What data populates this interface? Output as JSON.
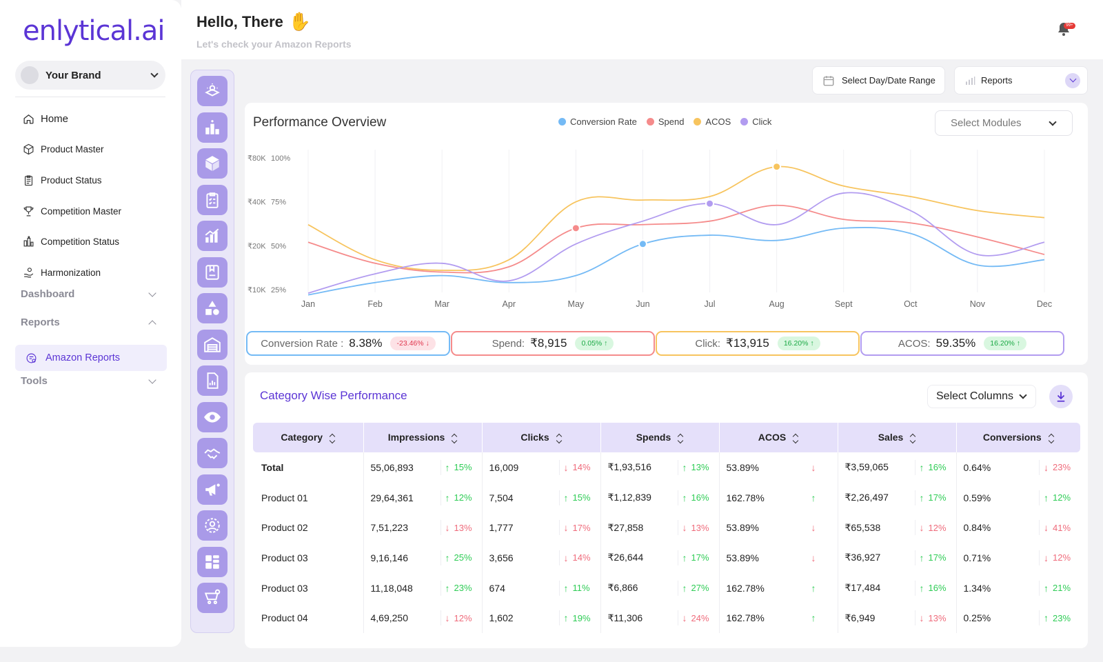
{
  "brand": {
    "logo_main": "enlytical",
    "logo_suffix": ".ai",
    "selector": "Your Brand"
  },
  "nav": {
    "items": [
      {
        "label": "Home",
        "icon": "home-icon"
      },
      {
        "label": "Product Master",
        "icon": "box-icon"
      },
      {
        "label": "Product Status",
        "icon": "clipboard-icon"
      },
      {
        "label": "Competition Master",
        "icon": "trophy-icon"
      },
      {
        "label": "Competition Status",
        "icon": "buildings-icon"
      },
      {
        "label": "Harmonization",
        "icon": "hand-coin-icon"
      }
    ],
    "sections": {
      "dashboard": "Dashboard",
      "reports": "Reports",
      "tools": "Tools"
    },
    "active_item": "Amazon Reports"
  },
  "header": {
    "greeting": "Hello, There",
    "subtitle": "Let's check your Amazon Reports",
    "notification_badge": "99+"
  },
  "controls": {
    "date_range": "Select Day/Date Range",
    "reports": "Reports"
  },
  "performance": {
    "title": "Performance Overview",
    "modules_placeholder": "Select Modules",
    "legend": [
      {
        "name": "Conversion Rate",
        "color": "#74baf5"
      },
      {
        "name": "Spend",
        "color": "#f58b8b"
      },
      {
        "name": "ACOS",
        "color": "#f7c45e"
      },
      {
        "name": "Click",
        "color": "#b29cf0"
      }
    ],
    "kpis": [
      {
        "label": "Conversion Rate :",
        "value": "8.38%",
        "change": "-23.46% ↓",
        "dir": "down",
        "color": "#74baf5"
      },
      {
        "label": "Spend:",
        "value": "₹8,915",
        "change": "0.05% ↑",
        "dir": "up",
        "color": "#f58b8b"
      },
      {
        "label": "Click:",
        "value": "₹13,915",
        "change": "16.20% ↑",
        "dir": "up",
        "color": "#f7c45e"
      },
      {
        "label": "ACOS:",
        "value": "59.35%",
        "change": "16.20% ↑",
        "dir": "up",
        "color": "#b29cf0"
      }
    ]
  },
  "chart_data": {
    "type": "line",
    "categories": [
      "Jan",
      "Feb",
      "Mar",
      "Apr",
      "May",
      "Jun",
      "Jul",
      "Aug",
      "Sept",
      "Oct",
      "Nov",
      "Dec"
    ],
    "y_left_ticks": [
      "₹80K",
      "₹40K",
      "₹20K",
      "₹10K"
    ],
    "y_right_ticks": [
      "100%",
      "75%",
      "50%",
      "25%"
    ],
    "ylim": [
      25,
      100
    ],
    "series": [
      {
        "name": "Conversion Rate",
        "color": "#74baf5",
        "values": [
          22,
          29,
          33,
          29,
          33,
          51,
          56,
          53,
          60,
          57,
          39,
          42
        ],
        "marker_index": 5
      },
      {
        "name": "Spend",
        "color": "#f58b8b",
        "values": [
          52,
          40,
          35,
          38,
          60,
          62,
          64,
          73,
          65,
          63,
          55,
          45
        ],
        "marker_index": 4
      },
      {
        "name": "ACOS",
        "color": "#f7c45e",
        "values": [
          62,
          42,
          36,
          42,
          75,
          76,
          78,
          95,
          84,
          78,
          70,
          66
        ],
        "marker_index": 7
      },
      {
        "name": "Click",
        "color": "#b29cf0",
        "values": [
          23,
          34,
          40,
          30,
          51,
          64,
          74,
          62,
          80,
          70,
          45,
          52
        ],
        "marker_index": 6
      }
    ]
  },
  "category": {
    "title": "Category Wise Performance",
    "select_columns": "Select Columns",
    "headers": [
      "Category",
      "Impressions",
      "Clicks",
      "Spends",
      "ACOS",
      "Sales",
      "Conversions"
    ],
    "rows": [
      {
        "name": "Total",
        "impressions": "55,06,893",
        "imp_chg": "15%",
        "imp_dir": "up",
        "clicks": "16,009",
        "clk_chg": "14%",
        "clk_dir": "down",
        "spends": "₹1,93,516",
        "spd_chg": "13%",
        "spd_dir": "up",
        "acos": "53.89%",
        "acos_dir": "down",
        "sales": "₹3,59,065",
        "sal_chg": "16%",
        "sal_dir": "up",
        "conv": "0.64%",
        "conv_chg": "23%",
        "conv_dir": "down"
      },
      {
        "name": "Product 01",
        "impressions": "29,64,361",
        "imp_chg": "12%",
        "imp_dir": "up",
        "clicks": "7,504",
        "clk_chg": "15%",
        "clk_dir": "up",
        "spends": "₹1,12,839",
        "spd_chg": "16%",
        "spd_dir": "up",
        "acos": "162.78%",
        "acos_dir": "up",
        "sales": "₹2,26,497",
        "sal_chg": "17%",
        "sal_dir": "up",
        "conv": "0.59%",
        "conv_chg": "12%",
        "conv_dir": "up"
      },
      {
        "name": "Product 02",
        "impressions": "7,51,223",
        "imp_chg": "13%",
        "imp_dir": "down",
        "clicks": "1,777",
        "clk_chg": "17%",
        "clk_dir": "down",
        "spends": "₹27,858",
        "spd_chg": "13%",
        "spd_dir": "down",
        "acos": "53.89%",
        "acos_dir": "down",
        "sales": "₹65,538",
        "sal_chg": "12%",
        "sal_dir": "down",
        "conv": "0.84%",
        "conv_chg": "41%",
        "conv_dir": "down"
      },
      {
        "name": "Product 03",
        "impressions": "9,16,146",
        "imp_chg": "25%",
        "imp_dir": "up",
        "clicks": "3,656",
        "clk_chg": "14%",
        "clk_dir": "down",
        "spends": "₹26,644",
        "spd_chg": "17%",
        "spd_dir": "up",
        "acos": "53.89%",
        "acos_dir": "down",
        "sales": "₹36,927",
        "sal_chg": "17%",
        "sal_dir": "up",
        "conv": "0.71%",
        "conv_chg": "12%",
        "conv_dir": "down"
      },
      {
        "name": "Product 03",
        "impressions": "11,18,048",
        "imp_chg": "23%",
        "imp_dir": "up",
        "clicks": "674",
        "clk_chg": "11%",
        "clk_dir": "up",
        "spends": "₹6,866",
        "spd_chg": "27%",
        "spd_dir": "up",
        "acos": "162.78%",
        "acos_dir": "up",
        "sales": "₹17,484",
        "sal_chg": "16%",
        "sal_dir": "up",
        "conv": "1.34%",
        "conv_chg": "21%",
        "conv_dir": "up"
      },
      {
        "name": "Product 04",
        "impressions": "4,69,250",
        "imp_chg": "12%",
        "imp_dir": "down",
        "clicks": "1,602",
        "clk_chg": "19%",
        "clk_dir": "up",
        "spends": "₹11,306",
        "spd_chg": "24%",
        "spd_dir": "down",
        "acos": "162.78%",
        "acos_dir": "up",
        "sales": "₹6,949",
        "sal_chg": "13%",
        "sal_dir": "down",
        "conv": "0.25%",
        "conv_chg": "23%",
        "conv_dir": "up"
      }
    ]
  }
}
